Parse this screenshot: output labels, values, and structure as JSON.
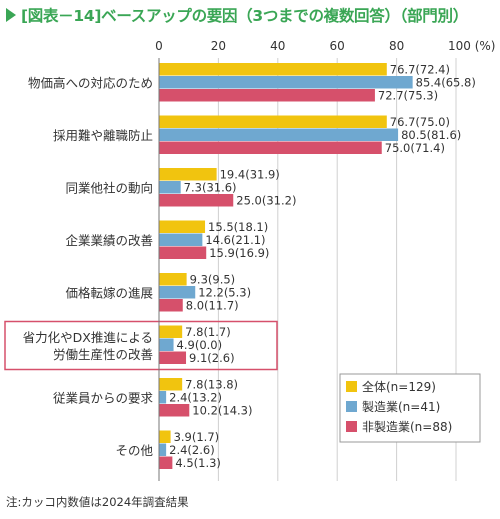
{
  "title": "[図表－14]ベースアップの要因（3つまでの複数回答）（部門別）",
  "note": "注:カッコ内数値は2024年調査結果",
  "unit_label": "100 (%)",
  "colors": {
    "title": "#3aa655",
    "all": "#f1c40f",
    "mfg": "#6fa8d0",
    "nonmfg": "#d6506b",
    "highlight": "#d6506b"
  },
  "chart_data": {
    "type": "bar",
    "orientation": "horizontal",
    "xlim": [
      0,
      100
    ],
    "x_ticks": [
      0,
      20,
      40,
      60,
      80,
      100
    ],
    "categories": [
      "物価高への対応のため",
      "採用難や離職防止",
      "同業他社の動向",
      "企業業績の改善",
      "価格転嫁の進展",
      "省力化やDX推進による労働生産性の改善",
      "従業員からの要求",
      "その他"
    ],
    "highlighted_category": "省力化やDX推進による労働生産性の改善",
    "series": [
      {
        "name": "全体(n=129)",
        "color": "#f1c40f",
        "values": [
          76.7,
          76.7,
          19.4,
          15.5,
          9.3,
          7.8,
          7.8,
          3.9
        ],
        "previous": [
          72.4,
          75.0,
          31.9,
          18.1,
          9.5,
          1.7,
          13.8,
          1.7
        ]
      },
      {
        "name": "製造業(n=41)",
        "color": "#6fa8d0",
        "values": [
          85.4,
          80.5,
          7.3,
          14.6,
          12.2,
          4.9,
          2.4,
          2.4
        ],
        "previous": [
          65.8,
          81.6,
          31.6,
          21.1,
          5.3,
          0.0,
          13.2,
          2.6
        ]
      },
      {
        "name": "非製造業(n=88)",
        "color": "#d6506b",
        "values": [
          72.7,
          75.0,
          25.0,
          15.9,
          8.0,
          9.1,
          10.2,
          4.5
        ],
        "previous": [
          75.3,
          71.4,
          31.2,
          16.9,
          11.7,
          2.6,
          14.3,
          1.3
        ]
      }
    ],
    "legend_position": "bottom-right",
    "grid": true
  }
}
